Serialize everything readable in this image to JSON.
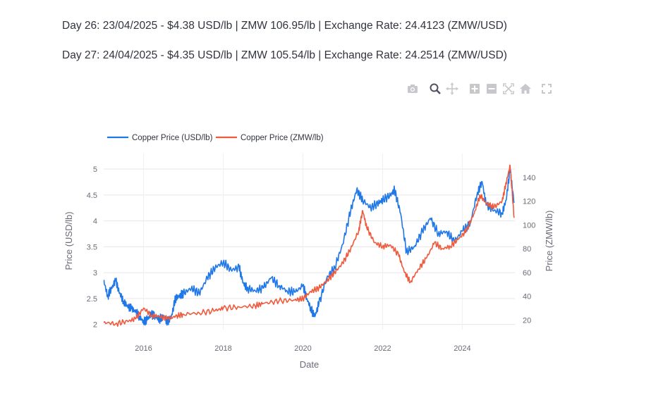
{
  "header": {
    "line1": "Day 26: 23/04/2025 - $4.38 USD/lb | ZMW 106.95/lb | Exchange Rate: 24.4123 (ZMW/USD)",
    "line2": "Day 27: 24/04/2025 - $4.35 USD/lb | ZMW 105.54/lb | Exchange Rate: 24.2514 (ZMW/USD)"
  },
  "modebar": {
    "icons": [
      "camera-icon",
      "zoom-icon",
      "pan-icon",
      "zoom-in-icon",
      "zoom-out-icon",
      "autoscale-icon",
      "home-icon",
      "fullscreen-icon"
    ]
  },
  "chart_data": {
    "type": "line",
    "title": "",
    "xlabel": "Date",
    "ylabel": "Price (USD/lb)",
    "y2label": "Price (ZMW/lb)",
    "xlim": [
      2015.0,
      2025.32
    ],
    "ylim": [
      1.9,
      5.3
    ],
    "y2lim": [
      12,
      160
    ],
    "x_ticks": [
      2016,
      2018,
      2020,
      2022,
      2024
    ],
    "x_tick_labels": [
      "2016",
      "2018",
      "2020",
      "2022",
      "2024"
    ],
    "y_ticks": [
      2,
      2.5,
      3,
      3.5,
      4,
      4.5,
      5
    ],
    "y_tick_labels": [
      "2",
      "2.5",
      "3",
      "3.5",
      "4",
      "4.5",
      "5"
    ],
    "y2_ticks": [
      20,
      40,
      60,
      80,
      100,
      120,
      140
    ],
    "y2_tick_labels": [
      "20",
      "40",
      "60",
      "80",
      "100",
      "120",
      "140"
    ],
    "grid": true,
    "legend_position": "top-left",
    "colors": {
      "usd": "#1f77e8",
      "zmw": "#ef5a3c"
    },
    "series": [
      {
        "name": "Copper Price (USD/lb)",
        "axis": "y",
        "x": [
          2015.0,
          2015.1,
          2015.2,
          2015.3,
          2015.4,
          2015.5,
          2015.6,
          2015.7,
          2015.8,
          2015.9,
          2016.0,
          2016.1,
          2016.2,
          2016.3,
          2016.4,
          2016.5,
          2016.6,
          2016.7,
          2016.8,
          2016.9,
          2017.0,
          2017.2,
          2017.4,
          2017.6,
          2017.8,
          2018.0,
          2018.2,
          2018.4,
          2018.5,
          2018.6,
          2018.8,
          2019.0,
          2019.2,
          2019.4,
          2019.6,
          2019.8,
          2020.0,
          2020.1,
          2020.2,
          2020.3,
          2020.4,
          2020.6,
          2020.8,
          2021.0,
          2021.2,
          2021.35,
          2021.5,
          2021.7,
          2021.9,
          2022.0,
          2022.2,
          2022.3,
          2022.45,
          2022.6,
          2022.8,
          2023.0,
          2023.2,
          2023.4,
          2023.6,
          2023.8,
          2024.0,
          2024.2,
          2024.38,
          2024.5,
          2024.6,
          2024.8,
          2025.0,
          2025.1,
          2025.2,
          2025.3
        ],
        "values": [
          2.85,
          2.55,
          2.7,
          2.85,
          2.6,
          2.45,
          2.35,
          2.3,
          2.25,
          2.15,
          2.05,
          2.1,
          2.2,
          2.15,
          2.1,
          2.15,
          2.05,
          2.15,
          2.5,
          2.55,
          2.6,
          2.7,
          2.6,
          2.9,
          3.1,
          3.2,
          3.05,
          3.1,
          2.8,
          2.7,
          2.65,
          2.7,
          2.9,
          2.75,
          2.65,
          2.62,
          2.75,
          2.5,
          2.3,
          2.15,
          2.4,
          2.9,
          3.1,
          3.55,
          4.2,
          4.6,
          4.4,
          4.25,
          4.35,
          4.4,
          4.5,
          4.6,
          4.15,
          3.4,
          3.5,
          3.8,
          4.05,
          3.75,
          3.8,
          3.6,
          3.8,
          3.95,
          4.55,
          4.75,
          4.3,
          4.2,
          4.15,
          4.4,
          5.0,
          4.35
        ]
      },
      {
        "name": "Copper Price (ZMW/lb)",
        "axis": "y2",
        "x": [
          2015.0,
          2015.3,
          2015.6,
          2015.8,
          2016.0,
          2016.2,
          2016.4,
          2016.6,
          2016.8,
          2017.0,
          2017.4,
          2017.8,
          2018.0,
          2018.4,
          2018.8,
          2019.0,
          2019.4,
          2019.8,
          2020.0,
          2020.2,
          2020.4,
          2020.6,
          2020.8,
          2021.0,
          2021.2,
          2021.4,
          2021.5,
          2021.6,
          2021.8,
          2022.0,
          2022.2,
          2022.4,
          2022.55,
          2022.7,
          2022.9,
          2023.1,
          2023.3,
          2023.5,
          2023.7,
          2023.9,
          2024.1,
          2024.3,
          2024.45,
          2024.6,
          2024.8,
          2025.0,
          2025.1,
          2025.2,
          2025.3
        ],
        "values": [
          18,
          17,
          19,
          21,
          30,
          24,
          23,
          21,
          23,
          25,
          26,
          28,
          30,
          31,
          32,
          34,
          36,
          37,
          38,
          44,
          47,
          53,
          60,
          68,
          80,
          95,
          112,
          98,
          85,
          82,
          83,
          75,
          60,
          52,
          63,
          72,
          85,
          80,
          82,
          88,
          95,
          110,
          125,
          118,
          115,
          120,
          135,
          150,
          106
        ]
      }
    ]
  }
}
